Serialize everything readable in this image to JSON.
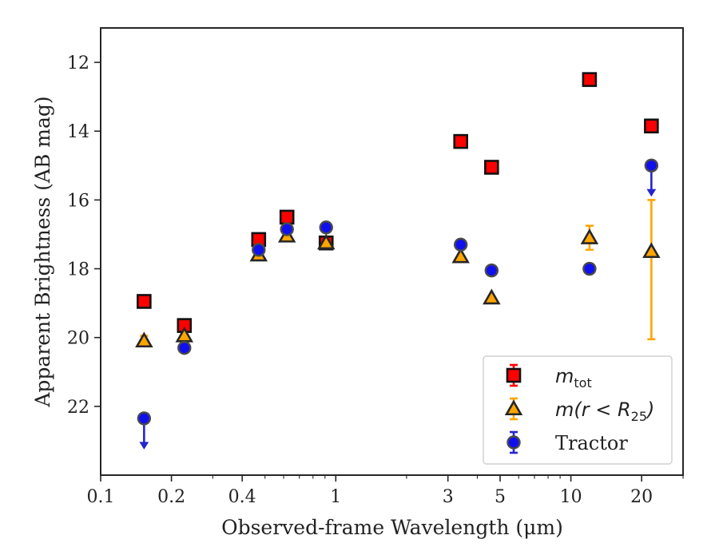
{
  "chart_data": {
    "type": "scatter",
    "xlabel": "Observed-frame Wavelength (μm)",
    "ylabel": "Apparent Brightness (AB mag)",
    "xscale": "log",
    "xlim": [
      0.1,
      30
    ],
    "ylim": [
      24,
      11
    ],
    "y_inverted": true,
    "x_ticks": [
      {
        "value": 0.1,
        "label": "0.1"
      },
      {
        "value": 0.2,
        "label": "0.2"
      },
      {
        "value": 0.4,
        "label": "0.4"
      },
      {
        "value": 1,
        "label": "1"
      },
      {
        "value": 3,
        "label": "3"
      },
      {
        "value": 5,
        "label": "5"
      },
      {
        "value": 10,
        "label": "10"
      },
      {
        "value": 20,
        "label": "20"
      }
    ],
    "y_ticks": [
      {
        "value": 12,
        "label": "12"
      },
      {
        "value": 14,
        "label": "14"
      },
      {
        "value": 16,
        "label": "16"
      },
      {
        "value": 18,
        "label": "18"
      },
      {
        "value": 20,
        "label": "20"
      },
      {
        "value": 22,
        "label": "22"
      }
    ],
    "grid": false,
    "legend_position": "bottom-right",
    "series": [
      {
        "name": "m_tot",
        "marker": "square",
        "color": "#ff0000",
        "errcolor": "#ff0000",
        "points": [
          {
            "x": 0.153,
            "y": 18.95
          },
          {
            "x": 0.227,
            "y": 19.65
          },
          {
            "x": 0.47,
            "y": 17.15
          },
          {
            "x": 0.62,
            "y": 16.5
          },
          {
            "x": 0.91,
            "y": 17.25
          },
          {
            "x": 3.4,
            "y": 14.3
          },
          {
            "x": 4.6,
            "y": 15.05
          },
          {
            "x": 12.0,
            "y": 12.5
          },
          {
            "x": 22.0,
            "y": 13.85
          }
        ]
      },
      {
        "name": "m(r < R25)",
        "marker": "triangle",
        "color": "#ffa500",
        "errcolor": "#ffa500",
        "points": [
          {
            "x": 0.153,
            "y": 20.1,
            "yerr": [
              0.15,
              0.15
            ]
          },
          {
            "x": 0.227,
            "y": 19.95
          },
          {
            "x": 0.47,
            "y": 17.6
          },
          {
            "x": 0.62,
            "y": 17.05
          },
          {
            "x": 0.91,
            "y": 17.25
          },
          {
            "x": 3.4,
            "y": 17.65
          },
          {
            "x": 4.6,
            "y": 18.85
          },
          {
            "x": 12.0,
            "y": 17.1,
            "yerr": [
              0.35,
              0.35
            ]
          },
          {
            "x": 22.0,
            "y": 17.5,
            "yerr": [
              2.55,
              1.5
            ]
          }
        ]
      },
      {
        "name": "Tractor",
        "marker": "circle",
        "color": "#1010ee",
        "errcolor": "#2525d0",
        "points": [
          {
            "x": 0.153,
            "y": 22.35,
            "upper_limit": true
          },
          {
            "x": 0.227,
            "y": 20.3
          },
          {
            "x": 0.47,
            "y": 17.45
          },
          {
            "x": 0.62,
            "y": 16.85
          },
          {
            "x": 0.91,
            "y": 16.8
          },
          {
            "x": 3.4,
            "y": 17.3
          },
          {
            "x": 4.6,
            "y": 18.05
          },
          {
            "x": 12.0,
            "y": 18.0
          },
          {
            "x": 22.0,
            "y": 15.0,
            "upper_limit": true
          }
        ]
      }
    ],
    "legend": [
      {
        "series": "m_tot",
        "base": "m",
        "sub": "tot"
      },
      {
        "series": "m(r < R25)",
        "base": "m(r < R",
        "sub": "25",
        "tail": ")"
      },
      {
        "series": "Tractor",
        "base": "Tractor"
      }
    ]
  }
}
